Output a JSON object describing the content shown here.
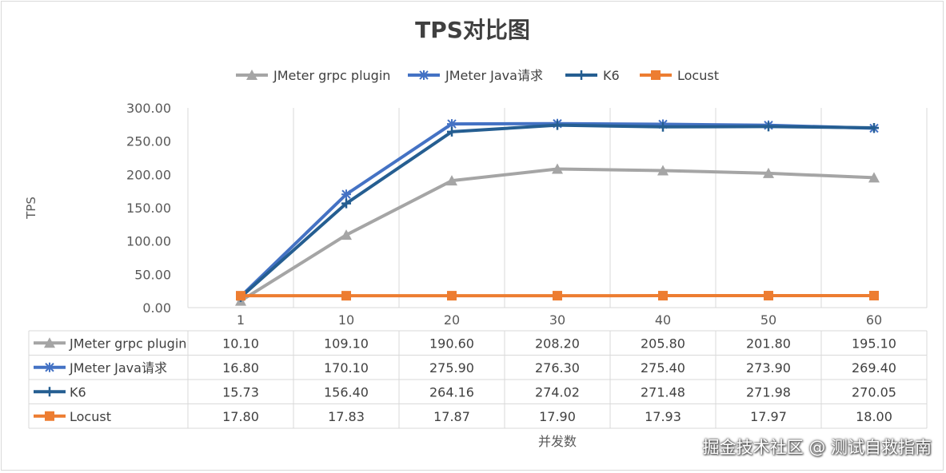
{
  "chart_data": {
    "type": "line",
    "title": "TPS对比图",
    "xlabel": "并发数",
    "ylabel": "TPS",
    "categories": [
      "1",
      "10",
      "20",
      "30",
      "40",
      "50",
      "60"
    ],
    "ylim": [
      0,
      300
    ],
    "yticks": [
      "0.00",
      "50.00",
      "100.00",
      "150.00",
      "200.00",
      "250.00",
      "300.00"
    ],
    "grid": "vertical",
    "legend": "top",
    "data_table": true,
    "series": [
      {
        "name": "JMeter grpc plugin",
        "color": "#a5a5a5",
        "marker": "triangle",
        "values": [
          10.1,
          109.1,
          190.6,
          208.2,
          205.8,
          201.8,
          195.1
        ],
        "labels": [
          "10.10",
          "109.10",
          "190.60",
          "208.20",
          "205.80",
          "201.80",
          "195.10"
        ]
      },
      {
        "name": "JMeter Java请求",
        "color": "#4472c4",
        "marker": "star",
        "values": [
          16.8,
          170.1,
          275.9,
          276.3,
          275.4,
          273.9,
          269.4
        ],
        "labels": [
          "16.80",
          "170.10",
          "275.90",
          "276.30",
          "275.40",
          "273.90",
          "269.40"
        ]
      },
      {
        "name": "K6",
        "color": "#255e91",
        "marker": "plus",
        "values": [
          15.73,
          156.4,
          264.16,
          274.02,
          271.48,
          271.98,
          270.05
        ],
        "labels": [
          "15.73",
          "156.40",
          "264.16",
          "274.02",
          "271.48",
          "271.98",
          "270.05"
        ]
      },
      {
        "name": "Locust",
        "color": "#ed7d31",
        "marker": "square",
        "values": [
          17.8,
          17.83,
          17.87,
          17.9,
          17.93,
          17.97,
          18.0
        ],
        "labels": [
          "17.80",
          "17.83",
          "17.87",
          "17.90",
          "17.93",
          "17.97",
          "18.00"
        ]
      }
    ]
  },
  "watermark": "掘金技术社区 @ 测试自救指南"
}
